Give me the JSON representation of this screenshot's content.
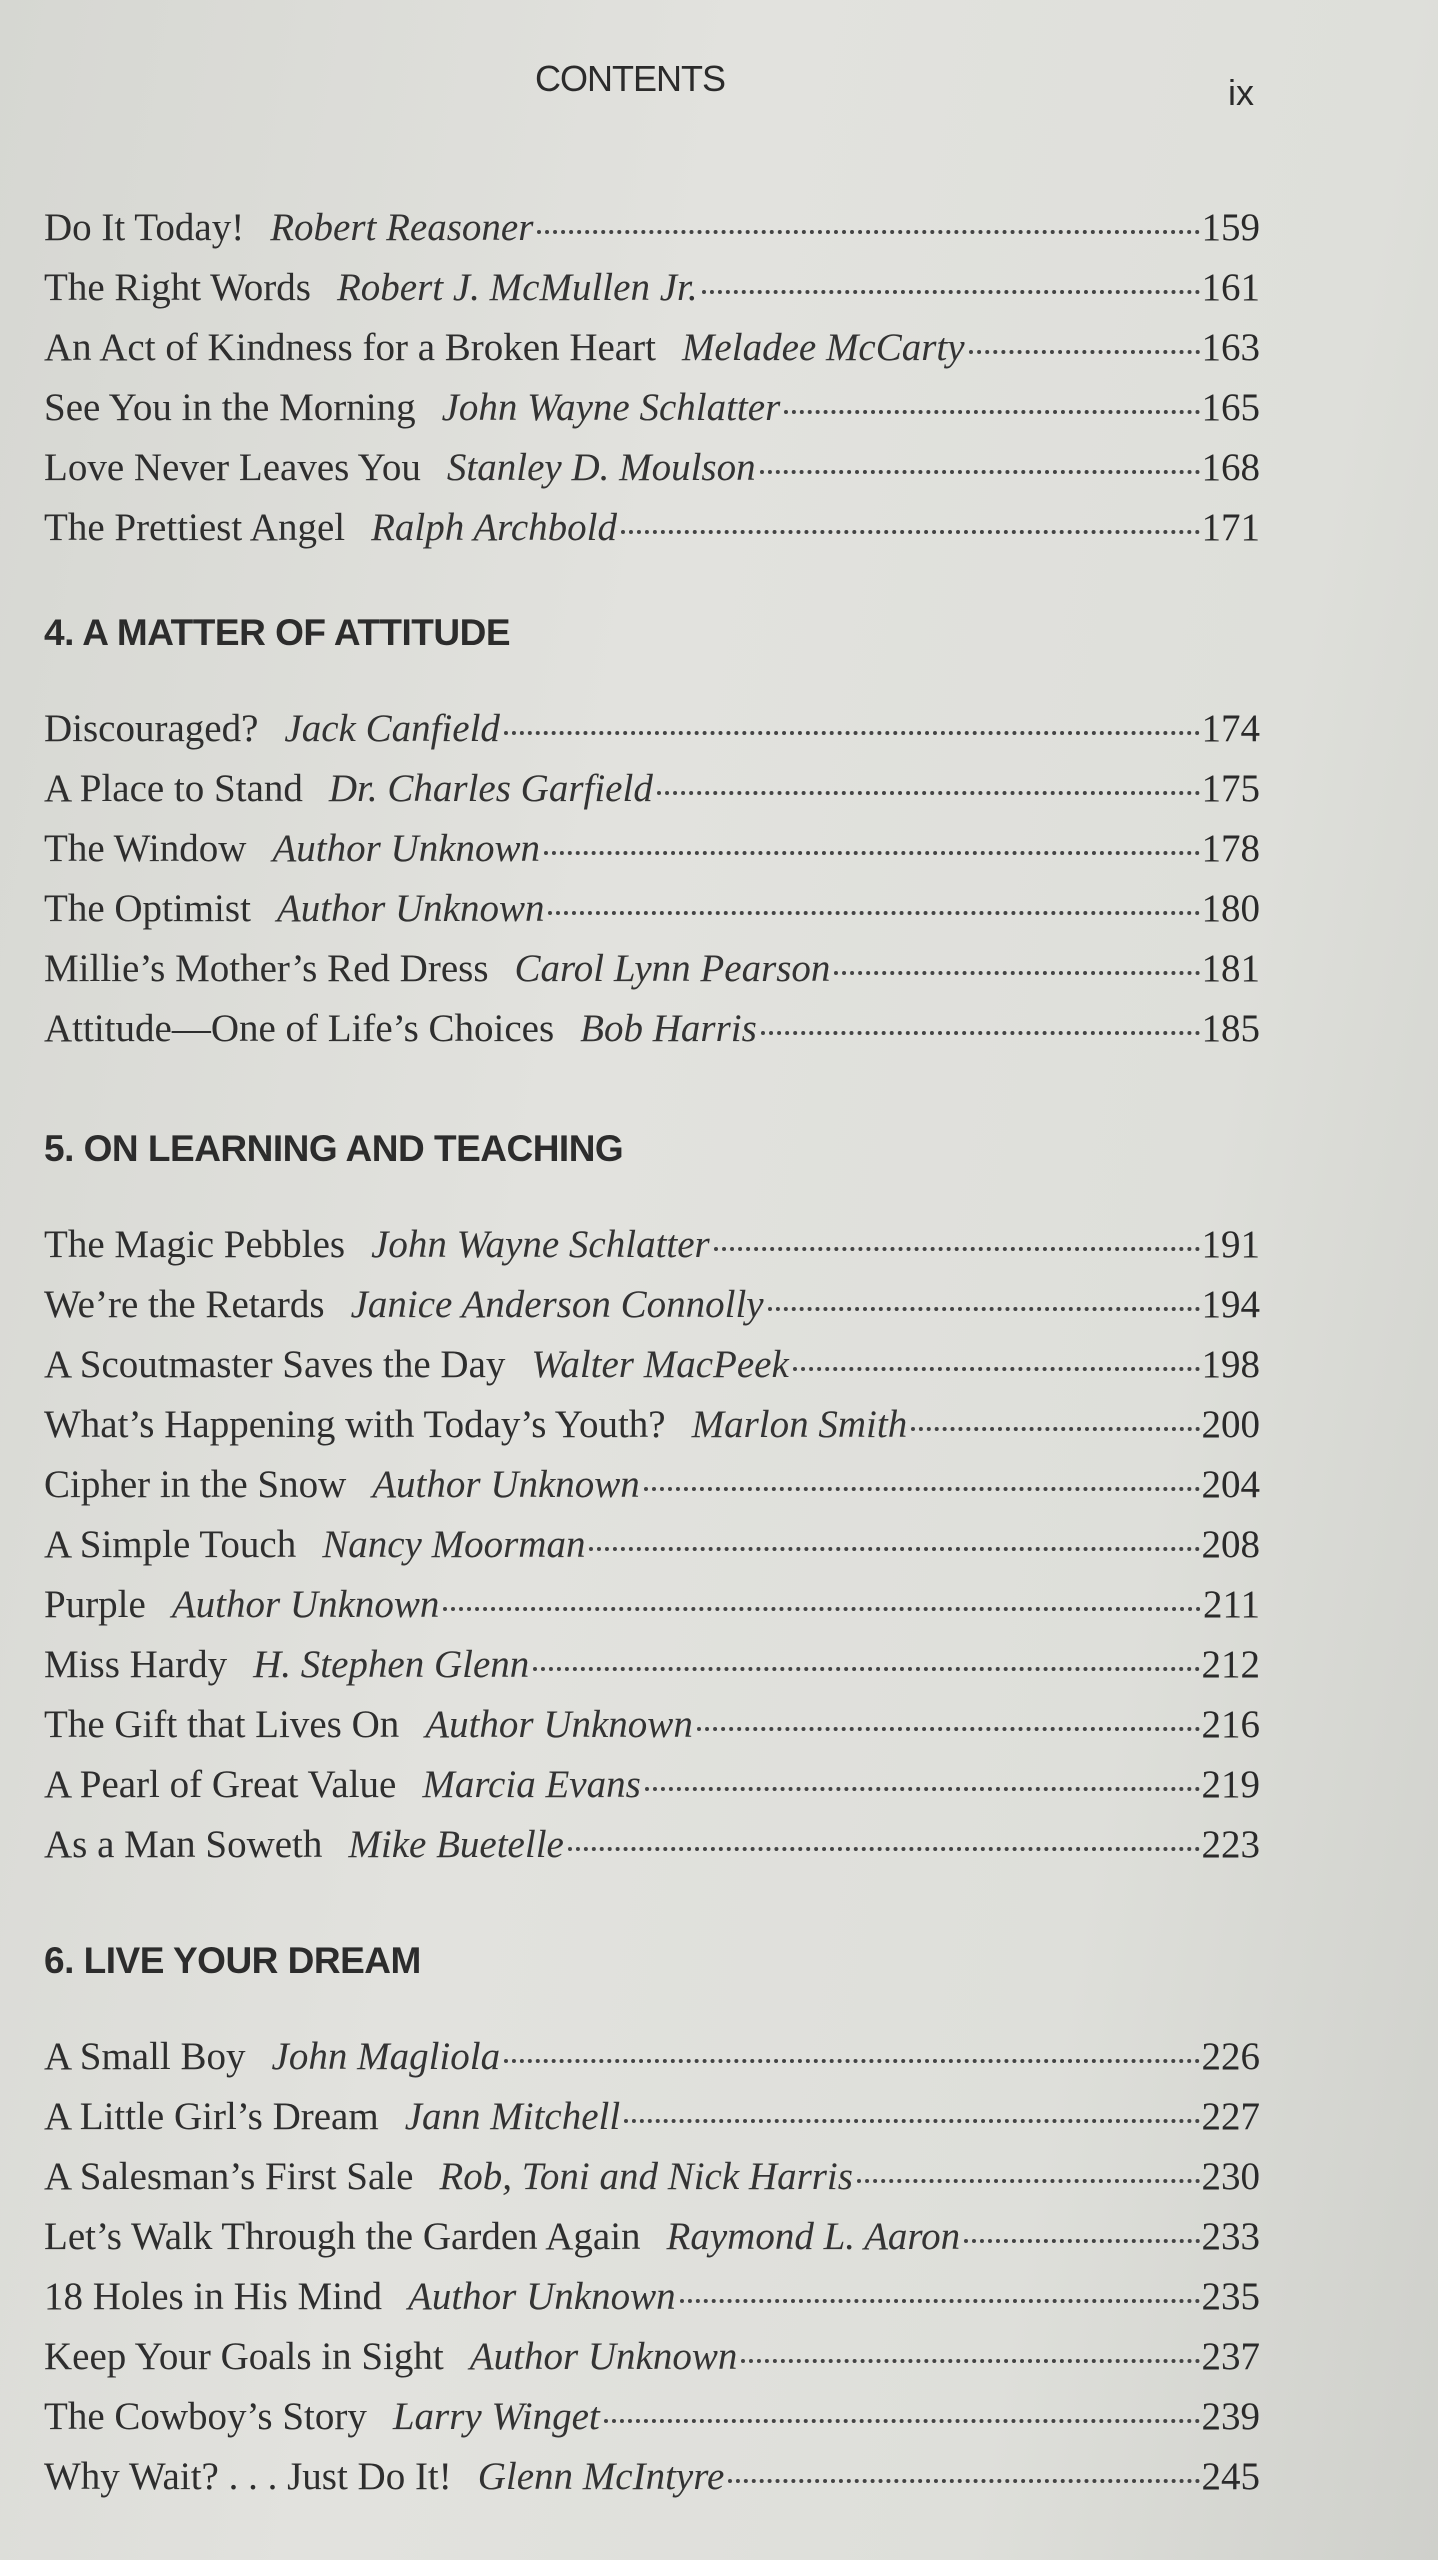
{
  "header": {
    "running_title": "CONTENTS",
    "folio": "ix"
  },
  "sections": [
    {
      "heading": "",
      "entries": [
        {
          "title": "Do It Today!",
          "author": "Robert Reasoner",
          "page": "159"
        },
        {
          "title": "The Right Words",
          "author": "Robert J. McMullen Jr.",
          "page": "161"
        },
        {
          "title": "An Act of Kindness for a Broken Heart",
          "author": "Meladee McCarty",
          "page": "163"
        },
        {
          "title": "See You in the Morning",
          "author": "John Wayne Schlatter",
          "page": "165"
        },
        {
          "title": "Love Never Leaves You",
          "author": "Stanley D. Moulson",
          "page": "168"
        },
        {
          "title": "The Prettiest Angel",
          "author": "Ralph Archbold",
          "page": "171"
        }
      ]
    },
    {
      "heading": "4. A MATTER OF ATTITUDE",
      "entries": [
        {
          "title": "Discouraged?",
          "author": "Jack Canfield",
          "page": "174"
        },
        {
          "title": "A Place to Stand",
          "author": "Dr. Charles Garfield",
          "page": "175"
        },
        {
          "title": "The Window",
          "author": "Author Unknown",
          "page": "178"
        },
        {
          "title": "The Optimist",
          "author": "Author Unknown",
          "page": "180"
        },
        {
          "title": "Millie’s Mother’s Red Dress",
          "author": "Carol Lynn Pearson",
          "page": "181"
        },
        {
          "title": "Attitude—One of Life’s Choices",
          "author": "Bob Harris",
          "page": "185"
        }
      ]
    },
    {
      "heading": "5. ON LEARNING AND TEACHING",
      "entries": [
        {
          "title": "The Magic Pebbles",
          "author": "John Wayne Schlatter",
          "page": "191"
        },
        {
          "title": "We’re the Retards",
          "author": "Janice Anderson Connolly",
          "page": "194"
        },
        {
          "title": "A Scoutmaster Saves the Day",
          "author": "Walter MacPeek",
          "page": "198"
        },
        {
          "title": "What’s Happening with Today’s Youth?",
          "author": "Marlon Smith",
          "page": "200"
        },
        {
          "title": "Cipher in the Snow",
          "author": "Author Unknown",
          "page": "204"
        },
        {
          "title": "A Simple Touch",
          "author": "Nancy Moorman",
          "page": "208"
        },
        {
          "title": "Purple",
          "author": "Author Unknown",
          "page": "211"
        },
        {
          "title": "Miss Hardy",
          "author": "H. Stephen Glenn",
          "page": "212"
        },
        {
          "title": "The Gift that Lives On",
          "author": "Author Unknown",
          "page": "216"
        },
        {
          "title": "A Pearl of Great Value",
          "author": "Marcia Evans",
          "page": "219"
        },
        {
          "title": "As a Man Soweth",
          "author": "Mike Buetelle",
          "page": "223"
        }
      ]
    },
    {
      "heading": "6. LIVE YOUR DREAM",
      "entries": [
        {
          "title": "A Small Boy",
          "author": "John Magliola",
          "page": "226"
        },
        {
          "title": "A Little Girl’s Dream",
          "author": "Jann Mitchell",
          "page": "227"
        },
        {
          "title": "A Salesman’s First Sale",
          "author": "Rob, Toni and Nick Harris",
          "page": "230"
        },
        {
          "title": "Let’s Walk Through the Garden Again",
          "author": "Raymond L. Aaron",
          "page": "233"
        },
        {
          "title": "18 Holes in His Mind",
          "author": "Author Unknown",
          "page": "235"
        },
        {
          "title": "Keep Your Goals in Sight",
          "author": "Author Unknown",
          "page": "237"
        },
        {
          "title": "The Cowboy’s Story",
          "author": "Larry Winget",
          "page": "239"
        },
        {
          "title": "Why Wait? . . . Just Do It!",
          "author": "Glenn McIntyre",
          "page": "245"
        }
      ]
    }
  ]
}
